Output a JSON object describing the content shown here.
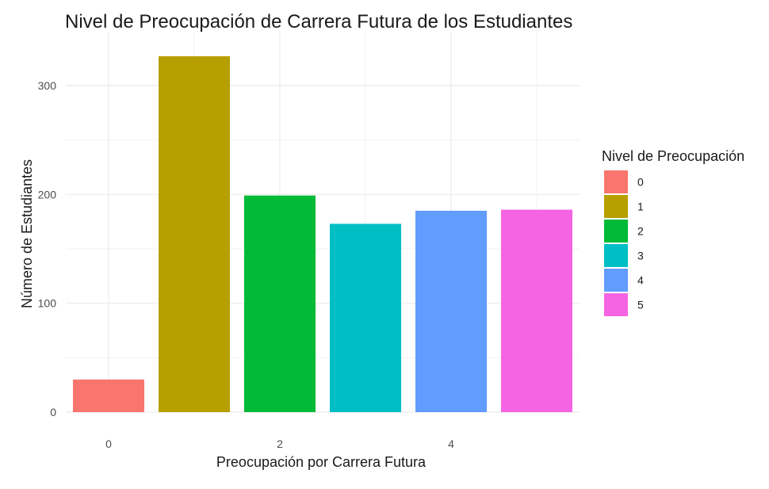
{
  "chart_data": {
    "type": "bar",
    "title": "Nivel de Preocupación de Carrera Futura de los Estudiantes",
    "xlabel": "Preocupación por Carrera Futura",
    "ylabel": "Número de Estudiantes",
    "categories": [
      "0",
      "1",
      "2",
      "3",
      "4",
      "5"
    ],
    "values": [
      30,
      327,
      199,
      173,
      185,
      186
    ],
    "colors": [
      "#F8766D",
      "#B79F00",
      "#00BA38",
      "#00BFC4",
      "#619CFF",
      "#F564E3"
    ],
    "x_ticks": [
      "0",
      "2",
      "4"
    ],
    "y_ticks": [
      "0",
      "100",
      "200",
      "300"
    ],
    "ylim": [
      0,
      335
    ],
    "grid": true,
    "legend": {
      "title": "Nivel de Preocupación",
      "position": "right",
      "items": [
        "0",
        "1",
        "2",
        "3",
        "4",
        "5"
      ]
    }
  }
}
